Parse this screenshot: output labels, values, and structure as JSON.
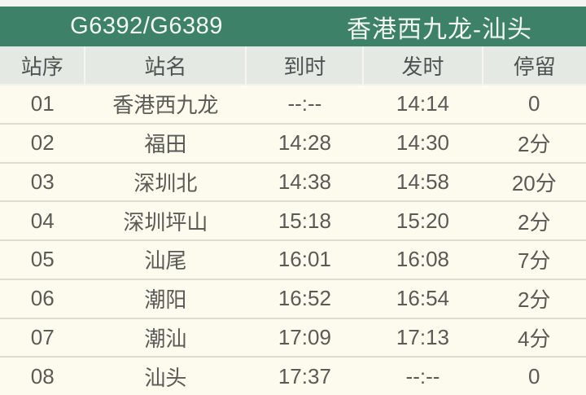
{
  "banner": {
    "train_number": "G6392/G6389",
    "route": "香港西九龙-汕头"
  },
  "table": {
    "columns": [
      "站序",
      "站名",
      "到时",
      "发时",
      "停留"
    ],
    "rows": [
      {
        "seq": "01",
        "station": "香港西九龙",
        "arrive": "--:--",
        "depart": "14:14",
        "stop": "0"
      },
      {
        "seq": "02",
        "station": "福田",
        "arrive": "14:28",
        "depart": "14:30",
        "stop": "2分"
      },
      {
        "seq": "03",
        "station": "深圳北",
        "arrive": "14:38",
        "depart": "14:58",
        "stop": "20分"
      },
      {
        "seq": "04",
        "station": "深圳坪山",
        "arrive": "15:18",
        "depart": "15:20",
        "stop": "2分"
      },
      {
        "seq": "05",
        "station": "汕尾",
        "arrive": "16:01",
        "depart": "16:08",
        "stop": "7分"
      },
      {
        "seq": "06",
        "station": "潮阳",
        "arrive": "16:52",
        "depart": "16:54",
        "stop": "2分"
      },
      {
        "seq": "07",
        "station": "潮汕",
        "arrive": "17:09",
        "depart": "17:13",
        "stop": "4分"
      },
      {
        "seq": "08",
        "station": "汕头",
        "arrive": "17:37",
        "depart": "--:--",
        "stop": "0"
      }
    ]
  },
  "colors": {
    "banner_green": "#3e8169",
    "banner_text": "#f2f8f1",
    "header_bg": "#e4eae3",
    "row_bg": "#fdfbee",
    "row_divider": "#dcdcd3",
    "cell_text": "#5a5a56",
    "top_strip": "#f4f4f1"
  }
}
